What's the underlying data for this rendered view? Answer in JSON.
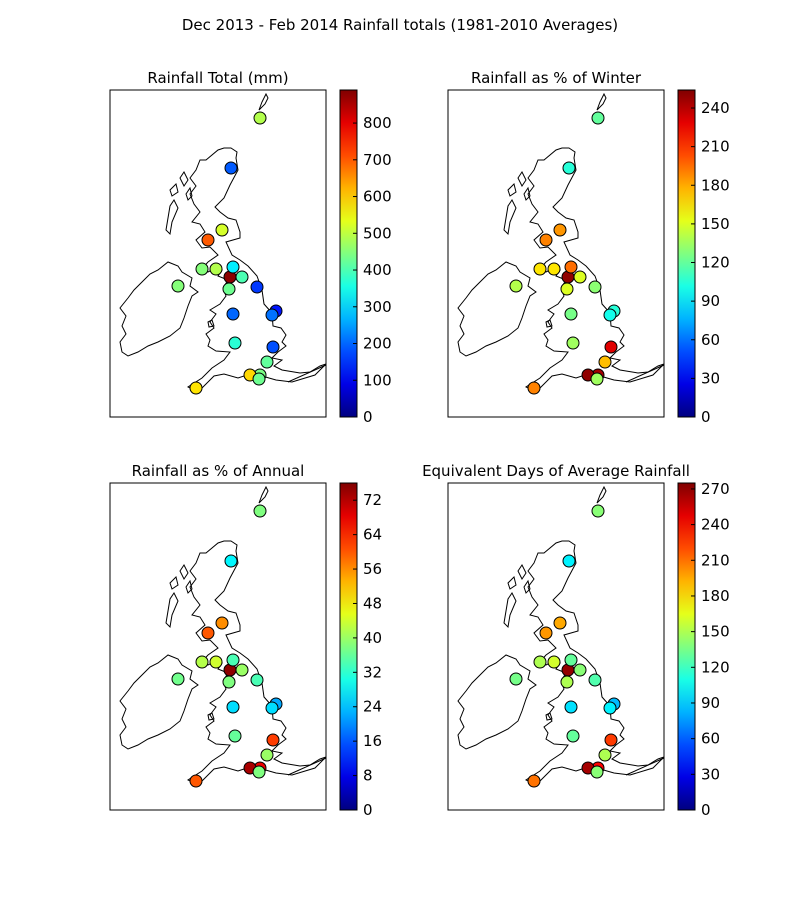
{
  "title": "Dec 2013 - Feb 2014 Rainfall totals (1981-2010 Averages)",
  "panels": [
    {
      "title": "Rainfall Total (mm)",
      "colorbar": {
        "min": 0,
        "max": 890,
        "ticks": [
          "0",
          "100",
          "200",
          "300",
          "400",
          "500",
          "600",
          "700",
          "800"
        ],
        "tick_values": [
          0,
          100,
          200,
          300,
          400,
          500,
          600,
          700,
          800
        ]
      },
      "stations": [
        {
          "v": 490
        },
        {
          "v": 190
        },
        {
          "v": 520
        },
        {
          "v": 700
        },
        {
          "v": 450
        },
        {
          "v": 490
        },
        {
          "v": 880
        },
        {
          "v": 320
        },
        {
          "v": 400
        },
        {
          "v": 430
        },
        {
          "v": 160
        },
        {
          "v": 450
        },
        {
          "v": 200
        },
        {
          "v": 130
        },
        {
          "v": 210
        },
        {
          "v": 370
        },
        {
          "v": 180
        },
        {
          "v": 420
        },
        {
          "v": 440
        },
        {
          "v": 590
        },
        {
          "v": 430
        },
        {
          "v": 580
        }
      ]
    },
    {
      "title": "Rainfall as % of Winter",
      "colorbar": {
        "min": 0,
        "max": 254,
        "ticks": [
          "0",
          "30",
          "60",
          "90",
          "120",
          "150",
          "180",
          "210",
          "240"
        ],
        "tick_values": [
          0,
          30,
          60,
          90,
          120,
          150,
          180,
          210,
          240
        ]
      },
      "stations": [
        {
          "v": 120
        },
        {
          "v": 105
        },
        {
          "v": 185
        },
        {
          "v": 190
        },
        {
          "v": 165
        },
        {
          "v": 165
        },
        {
          "v": 250
        },
        {
          "v": 195
        },
        {
          "v": 150
        },
        {
          "v": 150
        },
        {
          "v": 130
        },
        {
          "v": 140
        },
        {
          "v": 125
        },
        {
          "v": 105
        },
        {
          "v": 100
        },
        {
          "v": 135
        },
        {
          "v": 230
        },
        {
          "v": 175
        },
        {
          "v": 245
        },
        {
          "v": 250
        },
        {
          "v": 135
        },
        {
          "v": 190
        }
      ]
    },
    {
      "title": "Rainfall as % of Annual",
      "colorbar": {
        "min": 0,
        "max": 76,
        "ticks": [
          "0",
          "8",
          "16",
          "24",
          "32",
          "40",
          "48",
          "56",
          "64",
          "72"
        ],
        "tick_values": [
          0,
          8,
          16,
          24,
          32,
          40,
          48,
          56,
          64,
          72
        ]
      },
      "stations": [
        {
          "v": 38
        },
        {
          "v": 28
        },
        {
          "v": 56
        },
        {
          "v": 60
        },
        {
          "v": 42
        },
        {
          "v": 44
        },
        {
          "v": 75
        },
        {
          "v": 34
        },
        {
          "v": 40
        },
        {
          "v": 38
        },
        {
          "v": 34
        },
        {
          "v": 37
        },
        {
          "v": 26
        },
        {
          "v": 22
        },
        {
          "v": 26
        },
        {
          "v": 36
        },
        {
          "v": 62
        },
        {
          "v": 40
        },
        {
          "v": 68
        },
        {
          "v": 73
        },
        {
          "v": 38
        },
        {
          "v": 60
        }
      ]
    },
    {
      "title": "Equivalent Days of Average Rainfall",
      "colorbar": {
        "min": 0,
        "max": 275,
        "ticks": [
          "0",
          "30",
          "60",
          "90",
          "120",
          "150",
          "180",
          "210",
          "240",
          "270"
        ],
        "tick_values": [
          0,
          30,
          60,
          90,
          120,
          150,
          180,
          210,
          240,
          270
        ]
      },
      "stations": [
        {
          "v": 140
        },
        {
          "v": 100
        },
        {
          "v": 195
        },
        {
          "v": 200
        },
        {
          "v": 150
        },
        {
          "v": 160
        },
        {
          "v": 270
        },
        {
          "v": 130
        },
        {
          "v": 140
        },
        {
          "v": 150
        },
        {
          "v": 125
        },
        {
          "v": 135
        },
        {
          "v": 95
        },
        {
          "v": 85
        },
        {
          "v": 100
        },
        {
          "v": 130
        },
        {
          "v": 225
        },
        {
          "v": 150
        },
        {
          "v": 240
        },
        {
          "v": 265
        },
        {
          "v": 140
        },
        {
          "v": 210
        }
      ]
    }
  ]
}
